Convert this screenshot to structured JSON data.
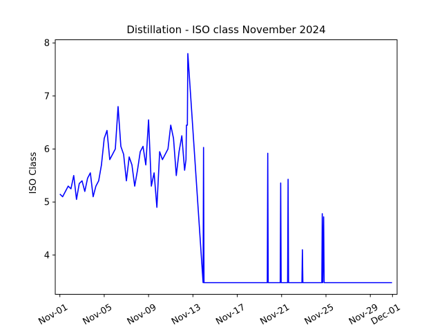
{
  "chart_data": {
    "type": "line",
    "title": "Distillation - ISO class November 2024",
    "ylabel": "ISO Class",
    "xlabel": "",
    "x_ticks": [
      "Nov-01",
      "Nov-05",
      "Nov-09",
      "Nov-13",
      "Nov-17",
      "Nov-21",
      "Nov-25",
      "Nov-29",
      "Dec-01"
    ],
    "y_ticks": [
      4,
      5,
      6,
      7,
      8
    ],
    "xlim": [
      "2024-10-31T14:00",
      "2024-12-01T10:00"
    ],
    "ylim": [
      3.26,
      8.06
    ],
    "grid": false,
    "legend": "none",
    "line_color": "#0000ff",
    "series": [
      {
        "x": [
          "2024-11-01T00:00",
          "2024-11-01T06:00",
          "2024-11-01T12:00",
          "2024-11-01T18:00",
          "2024-11-02T00:00",
          "2024-11-02T06:00",
          "2024-11-02T12:00",
          "2024-11-02T18:00",
          "2024-11-03T00:00",
          "2024-11-03T06:00",
          "2024-11-03T12:00",
          "2024-11-03T18:00",
          "2024-11-04T00:00",
          "2024-11-04T06:00",
          "2024-11-04T12:00",
          "2024-11-04T18:00",
          "2024-11-05T00:00",
          "2024-11-05T06:00",
          "2024-11-05T12:00",
          "2024-11-05T18:00",
          "2024-11-06T00:00",
          "2024-11-06T06:00",
          "2024-11-06T12:00",
          "2024-11-06T18:00",
          "2024-11-07T00:00",
          "2024-11-07T06:00",
          "2024-11-07T12:00",
          "2024-11-07T18:00",
          "2024-11-08T00:00",
          "2024-11-08T06:00",
          "2024-11-08T12:00",
          "2024-11-08T18:00",
          "2024-11-09T00:00",
          "2024-11-09T06:00",
          "2024-11-09T12:00",
          "2024-11-09T18:00",
          "2024-11-10T00:00",
          "2024-11-10T06:00",
          "2024-11-10T12:00",
          "2024-11-10T18:00",
          "2024-11-11T00:00",
          "2024-11-11T06:00",
          "2024-11-11T12:00",
          "2024-11-11T18:00",
          "2024-11-12T00:00",
          "2024-11-12T06:00",
          "2024-11-12T09:00",
          "2024-11-12T10:00",
          "2024-11-12T12:00",
          "2024-11-12T13:00",
          "2024-11-13T22:00",
          "2024-11-13T23:00",
          "2024-11-14T00:00",
          "2024-11-19T17:00",
          "2024-11-19T18:00",
          "2024-11-19T19:00",
          "2024-11-20T21:00",
          "2024-11-20T22:00",
          "2024-11-20T23:00",
          "2024-11-21T13:00",
          "2024-11-21T14:00",
          "2024-11-21T15:00",
          "2024-11-22T20:00",
          "2024-11-22T21:00",
          "2024-11-22T22:00",
          "2024-11-24T15:00",
          "2024-11-24T16:00",
          "2024-11-24T17:00",
          "2024-11-24T19:00",
          "2024-11-24T20:00",
          "2024-11-30T23:00"
        ],
        "y": [
          5.15,
          5.1,
          5.2,
          5.3,
          5.25,
          5.5,
          5.05,
          5.35,
          5.4,
          5.2,
          5.45,
          5.55,
          5.1,
          5.3,
          5.4,
          5.7,
          6.2,
          6.35,
          5.8,
          5.9,
          6.0,
          6.8,
          6.05,
          5.9,
          5.4,
          5.85,
          5.7,
          5.3,
          5.6,
          5.95,
          6.05,
          5.7,
          6.55,
          5.3,
          5.55,
          4.9,
          5.95,
          5.8,
          5.9,
          6.0,
          6.45,
          6.2,
          5.5,
          5.95,
          6.25,
          5.6,
          5.8,
          6.45,
          6.45,
          7.8,
          3.48,
          6.03,
          3.48,
          3.48,
          5.92,
          3.48,
          3.48,
          5.36,
          3.48,
          3.48,
          5.43,
          3.48,
          3.48,
          4.1,
          3.48,
          3.48,
          4.78,
          3.48,
          4.72,
          3.48,
          3.48
        ]
      }
    ]
  }
}
